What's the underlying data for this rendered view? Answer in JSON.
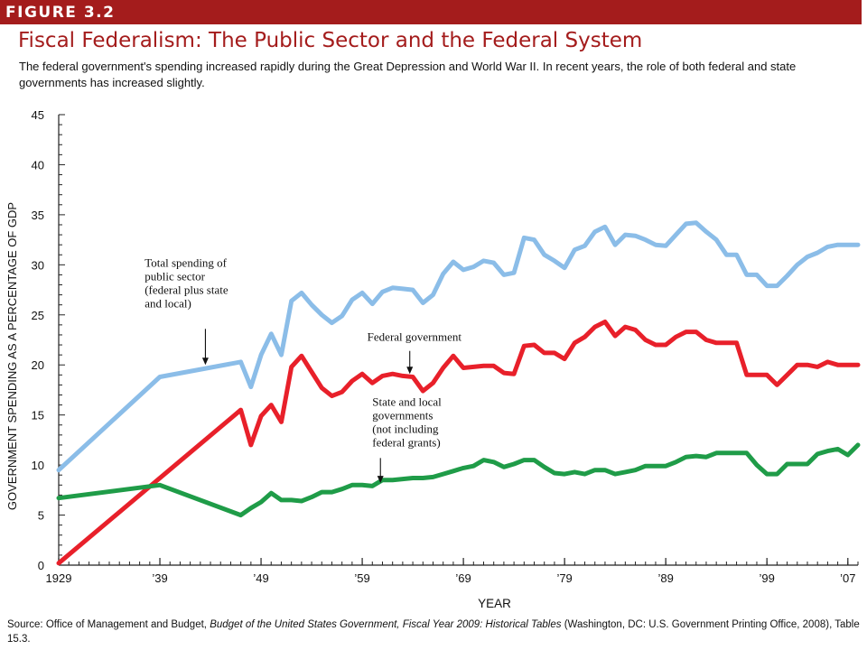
{
  "figure_label": "FIGURE 3.2",
  "title": "Fiscal Federalism: The Public Sector and the Federal System",
  "subtitle": "The federal government's spending increased rapidly during the Great Depression and World War II. In recent years, the role of both federal and state governments has increased slightly.",
  "source": {
    "prefix": "Source: Office of Management and Budget, ",
    "italic": "Budget of the United States Government, Fiscal Year 2009: Historical Tables",
    "suffix": " (Washington, DC: U.S. Government Printing Office, 2008), Table 15.3."
  },
  "chart_data": {
    "type": "line",
    "xlabel": "YEAR",
    "ylabel": "GOVERNMENT SPENDING AS A PERCENTAGE OF GDP",
    "xlim": [
      1929,
      2008
    ],
    "ylim": [
      0,
      45
    ],
    "yticks": [
      0,
      5,
      10,
      15,
      20,
      25,
      30,
      35,
      40,
      45
    ],
    "xticks": [
      {
        "value": 1929,
        "label": "1929"
      },
      {
        "value": 1939,
        "label": "’39"
      },
      {
        "value": 1949,
        "label": "’49"
      },
      {
        "value": 1959,
        "label": "’59"
      },
      {
        "value": 1969,
        "label": "’69"
      },
      {
        "value": 1979,
        "label": "’79"
      },
      {
        "value": 1989,
        "label": "’89"
      },
      {
        "value": 1999,
        "label": "’99"
      },
      {
        "value": 2007,
        "label": "’07"
      }
    ],
    "grid": false,
    "series": [
      {
        "color": "#8bbde8",
        "x": [
          1929,
          1939,
          1947,
          1948,
          1949,
          1950,
          1951,
          1952,
          1953,
          1954,
          1955,
          1956,
          1957,
          1958,
          1959,
          1960,
          1961,
          1962,
          1963,
          1964,
          1965,
          1966,
          1967,
          1968,
          1969,
          1970,
          1971,
          1972,
          1973,
          1974,
          1975,
          1976,
          1977,
          1978,
          1979,
          1980,
          1981,
          1982,
          1983,
          1984,
          1985,
          1986,
          1987,
          1988,
          1989,
          1990,
          1991,
          1992,
          1993,
          1994,
          1995,
          1996,
          1997,
          1998,
          1999,
          2000,
          2001,
          2002,
          2003,
          2004,
          2005,
          2006,
          2007,
          2008
        ],
        "y": [
          9.5,
          18.8,
          20.3,
          17.8,
          21.0,
          23.1,
          21.0,
          26.4,
          27.2,
          26.0,
          25.0,
          24.2,
          24.9,
          26.5,
          27.2,
          26.1,
          27.3,
          27.7,
          27.6,
          27.5,
          26.2,
          27.0,
          29.1,
          30.3,
          29.5,
          29.8,
          30.4,
          30.2,
          29.0,
          29.2,
          32.7,
          32.5,
          31.0,
          30.4,
          29.7,
          31.5,
          31.9,
          33.3,
          33.8,
          32.0,
          33.0,
          32.9,
          32.5,
          32.0,
          31.9,
          33.0,
          34.1,
          34.2,
          33.3,
          32.5,
          31.0,
          31.0,
          29.0,
          29.0,
          27.9,
          27.9,
          28.9,
          30.0,
          30.8,
          31.2,
          31.8,
          32.0,
          32.0,
          32.0
        ]
      },
      {
        "color": "#e8202a",
        "x": [
          1929,
          1947,
          1948,
          1949,
          1950,
          1951,
          1952,
          1953,
          1954,
          1955,
          1956,
          1957,
          1958,
          1959,
          1960,
          1961,
          1962,
          1963,
          1964,
          1965,
          1966,
          1967,
          1968,
          1969,
          1970,
          1971,
          1972,
          1973,
          1974,
          1975,
          1976,
          1977,
          1978,
          1979,
          1980,
          1981,
          1982,
          1983,
          1984,
          1985,
          1986,
          1987,
          1988,
          1989,
          1990,
          1991,
          1992,
          1993,
          1994,
          1995,
          1996,
          1997,
          1998,
          1999,
          2000,
          2001,
          2002,
          2003,
          2004,
          2005,
          2006,
          2007,
          2008
        ],
        "y": [
          0.2,
          15.5,
          12.0,
          14.9,
          16.0,
          14.3,
          19.8,
          20.9,
          19.3,
          17.7,
          16.9,
          17.3,
          18.4,
          19.1,
          18.2,
          18.9,
          19.1,
          18.9,
          18.8,
          17.4,
          18.2,
          19.7,
          20.9,
          19.7,
          19.8,
          19.9,
          19.9,
          19.2,
          19.1,
          21.9,
          22.0,
          21.2,
          21.2,
          20.6,
          22.2,
          22.8,
          23.8,
          24.3,
          22.9,
          23.8,
          23.5,
          22.5,
          22.0,
          22.0,
          22.8,
          23.3,
          23.3,
          22.5,
          22.2,
          22.2,
          22.2,
          19.0,
          19.0,
          19.0,
          18.0,
          19.0,
          20.0,
          20.0,
          19.8,
          20.3,
          20.0,
          20.0,
          20.0
        ]
      },
      {
        "color": "#1f9c48",
        "x": [
          1929,
          1939,
          1947,
          1948,
          1949,
          1950,
          1951,
          1952,
          1953,
          1954,
          1955,
          1956,
          1957,
          1958,
          1959,
          1960,
          1961,
          1962,
          1963,
          1964,
          1965,
          1966,
          1967,
          1968,
          1969,
          1970,
          1971,
          1972,
          1973,
          1974,
          1975,
          1976,
          1977,
          1978,
          1979,
          1980,
          1981,
          1982,
          1983,
          1984,
          1985,
          1986,
          1987,
          1988,
          1989,
          1990,
          1991,
          1992,
          1993,
          1994,
          1995,
          1996,
          1997,
          1998,
          1999,
          2000,
          2001,
          2002,
          2003,
          2004,
          2005,
          2006,
          2007,
          2008
        ],
        "y": [
          6.7,
          8.0,
          5.0,
          5.7,
          6.3,
          7.2,
          6.5,
          6.5,
          6.4,
          6.8,
          7.3,
          7.3,
          7.6,
          8.0,
          8.0,
          7.9,
          8.5,
          8.5,
          8.6,
          8.7,
          8.7,
          8.8,
          9.1,
          9.4,
          9.7,
          9.9,
          10.5,
          10.3,
          9.8,
          10.1,
          10.5,
          10.5,
          9.8,
          9.2,
          9.1,
          9.3,
          9.1,
          9.5,
          9.5,
          9.1,
          9.3,
          9.5,
          9.9,
          9.9,
          9.9,
          10.3,
          10.8,
          10.9,
          10.8,
          11.2,
          11.2,
          11.2,
          11.2,
          10.0,
          9.1,
          9.1,
          10.1,
          10.1,
          10.1,
          11.1,
          11.4,
          11.6,
          11.0,
          12.0
        ]
      }
    ],
    "annotations": [
      {
        "text": [
          "Total spending of",
          "public sector",
          "(federal plus state",
          "and local)"
        ],
        "label_at": [
          1937.5,
          29.8
        ],
        "arrow_from": [
          1943.5,
          23.6
        ],
        "arrow_to": [
          1943.5,
          20.0
        ]
      },
      {
        "text": [
          "Federal government"
        ],
        "label_at": [
          1959.5,
          22.4
        ],
        "arrow_from": [
          1963.7,
          21.4
        ],
        "arrow_to": [
          1963.7,
          19.1
        ]
      },
      {
        "text": [
          "State and local",
          "governments",
          "(not including",
          "federal grants)"
        ],
        "label_at": [
          1960.0,
          15.9
        ],
        "arrow_from": [
          1960.8,
          10.7
        ],
        "arrow_to": [
          1960.8,
          8.2
        ]
      }
    ]
  }
}
